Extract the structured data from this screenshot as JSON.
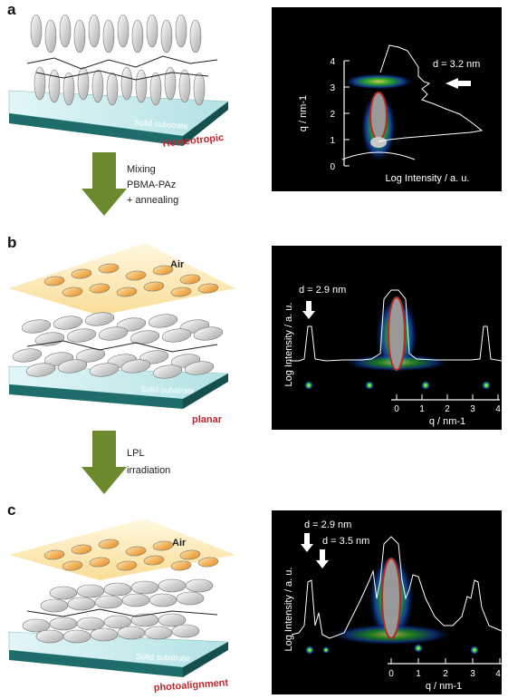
{
  "panels": [
    {
      "label": "a",
      "substrate_label": "Solid substrate",
      "orientation_label": "Homeotropic",
      "spectrum": {
        "d_label": "d = 3.2 nm",
        "y_axis_label": "q / nm-1",
        "y_ticks": [
          "0",
          "1",
          "2",
          "3",
          "4"
        ],
        "x_axis_label": "Log Intensity / a. u."
      }
    },
    {
      "label": "b",
      "air_label": "Air",
      "substrate_label": "Solid substrate",
      "orientation_label": "planar",
      "spectrum": {
        "d_label": "d = 2.9 nm",
        "y_axis_label": "Log Intensity / a. u.",
        "x_ticks": [
          "0",
          "1",
          "2",
          "3",
          "4"
        ],
        "x_axis_label": "q / nm-1"
      }
    },
    {
      "label": "c",
      "air_label": "Air",
      "substrate_label": "Solid substrate",
      "orientation_label": "photoalignment",
      "spectrum": {
        "d_labels": [
          "d = 2.9 nm",
          "d = 3.5 nm"
        ],
        "y_axis_label": "Log Intensity / a. u.",
        "x_ticks": [
          "0",
          "1",
          "2",
          "3",
          "4"
        ],
        "x_axis_label": "q / nm-1"
      }
    }
  ],
  "steps": [
    {
      "lines": [
        "Mixing",
        "PBMA-PAz",
        "+ annealing"
      ]
    },
    {
      "lines": [
        "LPL",
        "irradiation"
      ]
    }
  ],
  "colors": {
    "substrate_top": "#c8ecee",
    "substrate_side": "#1f6d6a",
    "orientation_text": "#c0272d",
    "arrow": "#6b8a2e",
    "ellipse_gray": "#c8c8c8",
    "ellipse_orange": "#f2a642",
    "spectrum_bg": "#000000"
  }
}
